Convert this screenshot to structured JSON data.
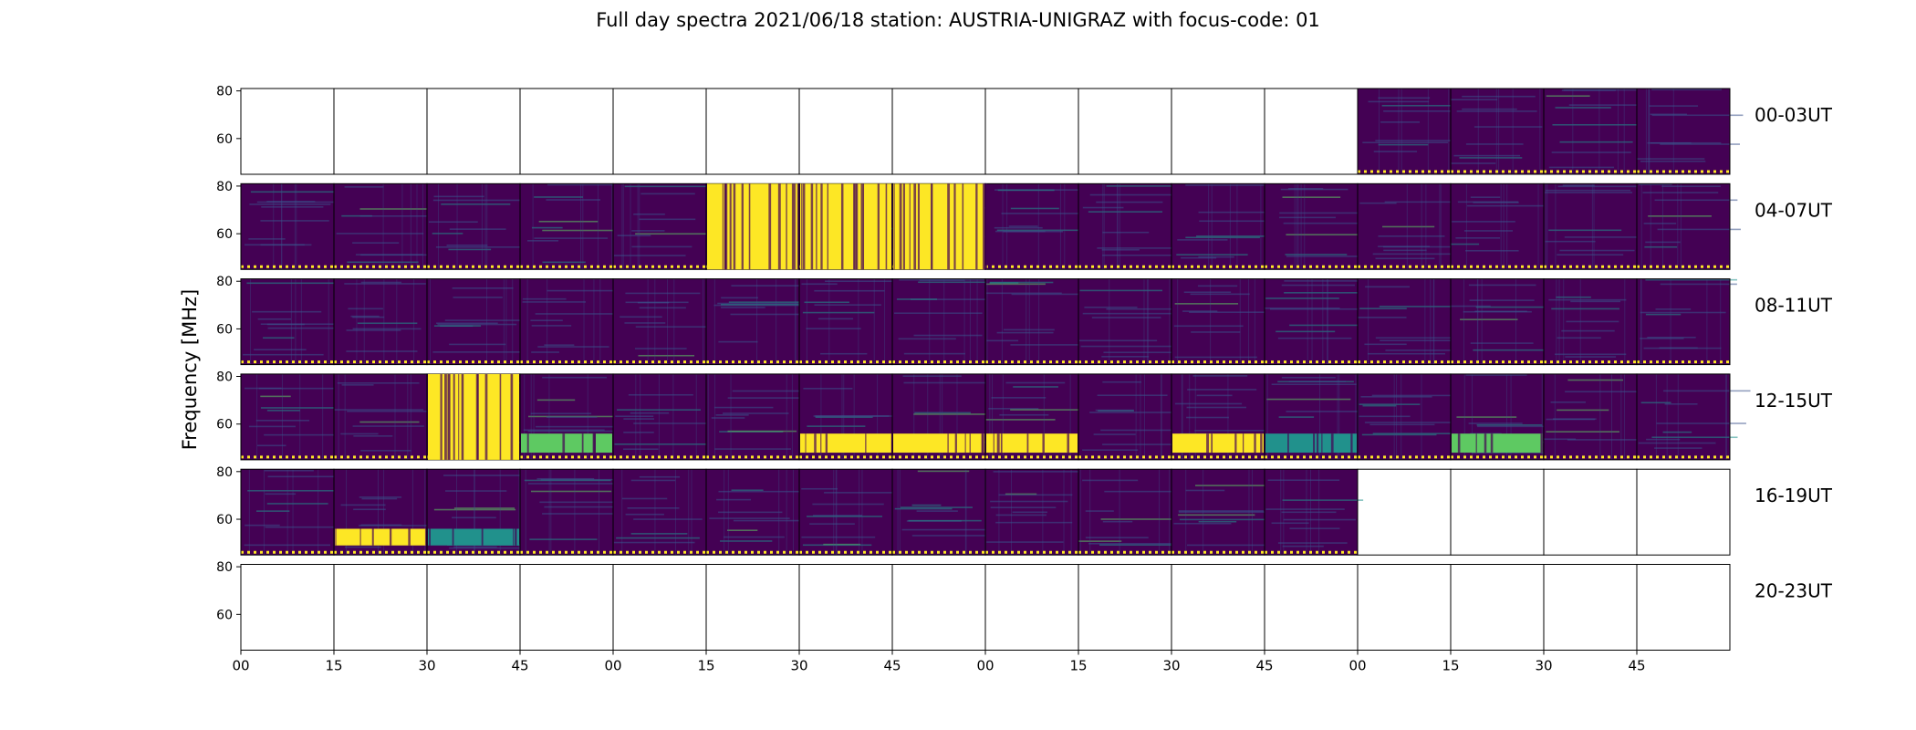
{
  "chart_data": {
    "type": "heatmap",
    "title": "Full day spectra 2021/06/18 station: AUSTRIA-UNIGRAZ with focus-code: 01",
    "ylabel": "Frequency [MHz]",
    "xlabel": "",
    "ylim": [
      45,
      81
    ],
    "yticks": [
      60,
      80
    ],
    "xticks": [
      "00",
      "15",
      "30",
      "45",
      "00",
      "15",
      "30",
      "45",
      "00",
      "15",
      "30",
      "45",
      "00",
      "15",
      "30",
      "45"
    ],
    "colormap": "viridis",
    "colors": {
      "low": "#440154",
      "mid_low": "#3b528b",
      "mid": "#21918c",
      "mid_high": "#5ec962",
      "high": "#fde725"
    },
    "rows": [
      {
        "label": "00-03UT",
        "panels": [
          0,
          0,
          0,
          0,
          0,
          0,
          0,
          0,
          0,
          0,
          0,
          0,
          1,
          1,
          1,
          1
        ],
        "bursts": []
      },
      {
        "label": "04-07UT",
        "panels": [
          1,
          1,
          1,
          1,
          1,
          1,
          1,
          1,
          1,
          1,
          1,
          1,
          1,
          1,
          1,
          1
        ],
        "bursts": [
          {
            "panels": [
              5,
              6,
              7
            ],
            "fmin": 45,
            "fmax": 81,
            "level": "high"
          }
        ]
      },
      {
        "label": "08-11UT",
        "panels": [
          1,
          1,
          1,
          1,
          1,
          1,
          1,
          1,
          1,
          1,
          1,
          1,
          1,
          1,
          1,
          1
        ],
        "bursts": []
      },
      {
        "label": "12-15UT",
        "panels": [
          1,
          1,
          1,
          1,
          1,
          1,
          1,
          1,
          1,
          1,
          1,
          1,
          1,
          1,
          1,
          1
        ],
        "bursts": [
          {
            "panels": [
              2
            ],
            "fmin": 45,
            "fmax": 81,
            "level": "high"
          },
          {
            "panels": [
              3
            ],
            "fmin": 48,
            "fmax": 56,
            "level": "mid_high"
          },
          {
            "panels": [
              6,
              7,
              8
            ],
            "fmin": 48,
            "fmax": 56,
            "level": "high"
          },
          {
            "panels": [
              10
            ],
            "fmin": 48,
            "fmax": 56,
            "level": "high"
          },
          {
            "panels": [
              11
            ],
            "fmin": 48,
            "fmax": 56,
            "level": "mid"
          },
          {
            "panels": [
              13
            ],
            "fmin": 48,
            "fmax": 56,
            "level": "mid_high"
          }
        ]
      },
      {
        "label": "16-19UT",
        "panels": [
          1,
          1,
          1,
          1,
          1,
          1,
          1,
          1,
          1,
          1,
          1,
          1,
          0,
          0,
          0,
          0
        ],
        "bursts": [
          {
            "panels": [
              1
            ],
            "fmin": 49,
            "fmax": 56,
            "level": "high"
          },
          {
            "panels": [
              2
            ],
            "fmin": 49,
            "fmax": 56,
            "level": "mid"
          }
        ]
      },
      {
        "label": "20-23UT",
        "panels": [
          0,
          0,
          0,
          0,
          0,
          0,
          0,
          0,
          0,
          0,
          0,
          0,
          0,
          0,
          0,
          0
        ],
        "bursts": []
      }
    ]
  }
}
